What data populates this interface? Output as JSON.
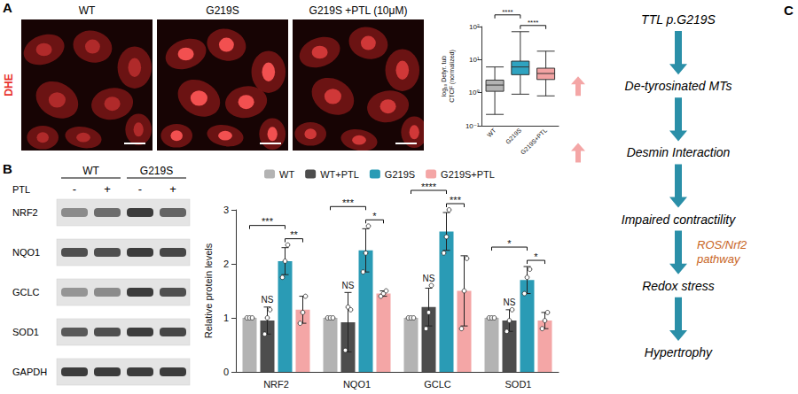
{
  "figure": {
    "panel_A": {
      "letter": "A",
      "stain": "DHE",
      "images": [
        "WT",
        "G219S",
        "G219S +PTL (10μM)"
      ]
    },
    "panel_B": {
      "letter": "B",
      "blot": {
        "groups": [
          "WT",
          "G219S"
        ],
        "treatment": "PTL",
        "treatment_marks": [
          "-",
          "+",
          "-",
          "+"
        ],
        "rows": [
          "NRF2",
          "NQO1",
          "GCLC",
          "SOD1",
          "GAPDH"
        ]
      }
    },
    "panel_C": {
      "letter": "C",
      "steps": [
        {
          "label": "TTL p.G219S"
        },
        {
          "label": "De-tyrosinated MTs",
          "increase": true
        },
        {
          "label": "Desmin Interaction",
          "increase": true
        },
        {
          "label": "Impaired contractility"
        },
        {
          "label": "Redox stress",
          "arrow_label": "ROS/Nrf2 pathway"
        },
        {
          "label": "Hypertrophy"
        }
      ]
    }
  },
  "chart_data": [
    {
      "type": "boxplot",
      "y_label": "log₁₀ Detyr. tub CTCF (normalized)",
      "categories": [
        "WT",
        "G219S",
        "G219S+PTL"
      ],
      "boxes": [
        [
          0.22,
          1.1,
          1.7,
          2.4,
          6
        ],
        [
          0.9,
          3.5,
          6,
          9,
          70
        ],
        [
          0.8,
          2.5,
          3.8,
          5.5,
          18
        ]
      ],
      "colors": [
        "#b3b3b3",
        "#2fa3c0",
        "#f2a3a3"
      ],
      "log": "y",
      "ylim": [
        0.1,
        100
      ],
      "yticks": [
        {
          "value": 0.1,
          "label": "10⁻¹"
        },
        {
          "value": 1,
          "label": "10⁰"
        },
        {
          "value": 10,
          "label": "10¹"
        },
        {
          "value": 100,
          "label": "10²"
        }
      ],
      "grid": false,
      "significance": [
        {
          "from": "WT",
          "to": "G219S",
          "label": "****"
        },
        {
          "from": "G219S",
          "to": "G219S+PTL",
          "label": "****"
        }
      ]
    },
    {
      "type": "bar",
      "y_label": "Relative protein levels",
      "categories": [
        "NRF2",
        "NQO1",
        "GCLC",
        "SOD1"
      ],
      "series": [
        {
          "name": "WT",
          "color": "#b3b3b3",
          "values": [
            1,
            1,
            1,
            1
          ],
          "errors": [
            0,
            0,
            0,
            0
          ],
          "points": [
            [
              1,
              1,
              1
            ],
            [
              1,
              1,
              1
            ],
            [
              1,
              1,
              1
            ],
            [
              1,
              1,
              1
            ]
          ]
        },
        {
          "name": "WT+PTL",
          "color": "#4d4d4d",
          "values": [
            0.95,
            0.92,
            1.2,
            0.95
          ],
          "errors": [
            0.25,
            0.55,
            0.35,
            0.2
          ],
          "points": [
            [
              0.7,
              1.0,
              1.15
            ],
            [
              0.4,
              1.2,
              1.15
            ],
            [
              0.8,
              1.1,
              1.6
            ],
            [
              0.75,
              0.95,
              1.15
            ]
          ]
        },
        {
          "name": "G219S",
          "color": "#2a9bb5",
          "values": [
            2.05,
            2.25,
            2.6,
            1.7
          ],
          "errors": [
            0.25,
            0.4,
            0.35,
            0.25
          ],
          "points": [
            [
              1.75,
              2.05,
              2.35
            ],
            [
              1.85,
              2.2,
              2.7
            ],
            [
              2.2,
              2.5,
              3.0
            ],
            [
              1.45,
              1.75,
              1.9
            ]
          ]
        },
        {
          "name": "G219S+PTL",
          "color": "#f4a6a6",
          "values": [
            1.15,
            1.45,
            1.5,
            0.95
          ],
          "errors": [
            0.25,
            0.05,
            0.65,
            0.15
          ],
          "points": [
            [
              0.9,
              1.1,
              1.4
            ],
            [
              1.4,
              1.45,
              1.5
            ],
            [
              0.8,
              1.5,
              2.1
            ],
            [
              0.8,
              0.95,
              1.1
            ]
          ]
        }
      ],
      "ylim": [
        0,
        3
      ],
      "yticks": [
        0,
        1,
        2,
        3
      ],
      "grid": false,
      "legend": "top",
      "significance": [
        {
          "category": "NRF2",
          "from": "WT",
          "to": "G219S",
          "label": "***"
        },
        {
          "category": "NRF2",
          "from": "G219S",
          "to": "G219S+PTL",
          "label": "**"
        },
        {
          "category": "NQO1",
          "from": "WT",
          "to": "G219S",
          "label": "***"
        },
        {
          "category": "NQO1",
          "from": "G219S",
          "to": "G219S+PTL",
          "label": "*"
        },
        {
          "category": "GCLC",
          "from": "WT",
          "to": "G219S",
          "label": "****"
        },
        {
          "category": "GCLC",
          "from": "G219S",
          "to": "G219S+PTL",
          "label": "***"
        },
        {
          "category": "SOD1",
          "from": "WT",
          "to": "G219S",
          "label": "*"
        },
        {
          "category": "SOD1",
          "from": "G219S",
          "to": "G219S+PTL",
          "label": "*"
        }
      ],
      "ns": [
        {
          "category": "NRF2",
          "series": "WT+PTL",
          "label": "NS"
        },
        {
          "category": "NQO1",
          "series": "WT+PTL",
          "label": "NS"
        },
        {
          "category": "GCLC",
          "series": "WT+PTL",
          "label": "NS"
        },
        {
          "category": "SOD1",
          "series": "WT+PTL",
          "label": "NS"
        }
      ]
    }
  ]
}
